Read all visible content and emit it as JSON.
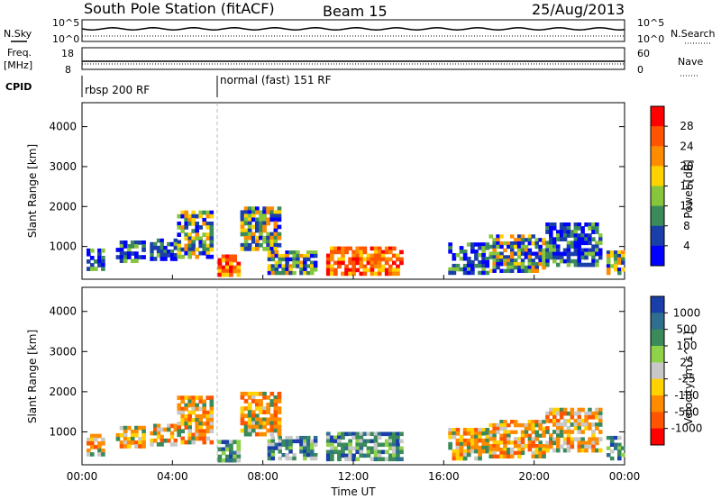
{
  "header": {
    "station": "South Pole Station (fitACF)",
    "beam": "Beam 15",
    "date": "25/Aug/2013"
  },
  "top_panels": {
    "nsky_label": "N.Sky",
    "nsky_ticks": [
      "10^5",
      "10^0"
    ],
    "nsearch_label": "N.Search",
    "nsearch_ticks": [
      "10^5",
      "10^0"
    ],
    "freq_label_1": "Freq.",
    "freq_label_2": "[MHz]",
    "freq_ticks": [
      "18",
      "8"
    ],
    "nave_label": "Nave",
    "nave_ticks": [
      "60",
      "0"
    ],
    "cpid_label": "CPID",
    "cpid_segments": [
      {
        "label": "rbsp 200 RF",
        "start_hour": 0
      },
      {
        "label": "normal (fast) 151 RF",
        "start_hour": 6
      }
    ]
  },
  "x_axis": {
    "label": "Time UT",
    "ticks": [
      "00:00",
      "04:00",
      "08:00",
      "12:00",
      "16:00",
      "20:00",
      "00:00"
    ]
  },
  "chart_data": [
    {
      "type": "heatmap",
      "ylabel": "Slant Range [km]",
      "xlim": [
        0,
        24
      ],
      "ylim": [
        180,
        4600
      ],
      "yticks": [
        "4000",
        "3000",
        "2000",
        "1000"
      ],
      "colorbar": {
        "label": "Power [dB]",
        "ticks": [
          "28",
          "24",
          "20",
          "16",
          "12",
          "8",
          "4"
        ],
        "colors": [
          "#ff0000",
          "#ff5500",
          "#ff8c00",
          "#ffd200",
          "#86c53c",
          "#3a8a5a",
          "#1a3fa8",
          "#0000ff"
        ]
      },
      "regions": [
        {
          "t0": 0.2,
          "t1": 1.0,
          "r0": 400,
          "r1": 950,
          "level": "low"
        },
        {
          "t0": 1.5,
          "t1": 2.8,
          "r0": 600,
          "r1": 1150,
          "level": "low"
        },
        {
          "t0": 3.0,
          "t1": 4.2,
          "r0": 650,
          "r1": 1200,
          "level": "low"
        },
        {
          "t0": 4.2,
          "t1": 5.8,
          "r0": 700,
          "r1": 1900,
          "level": "mid"
        },
        {
          "t0": 6.0,
          "t1": 7.0,
          "r0": 250,
          "r1": 800,
          "level": "high"
        },
        {
          "t0": 7.0,
          "t1": 8.8,
          "r0": 900,
          "r1": 2000,
          "level": "mid"
        },
        {
          "t0": 8.2,
          "t1": 10.4,
          "r0": 300,
          "r1": 900,
          "level": "mid"
        },
        {
          "t0": 10.8,
          "t1": 14.2,
          "r0": 280,
          "r1": 1000,
          "level": "high"
        },
        {
          "t0": 16.2,
          "t1": 18.0,
          "r0": 300,
          "r1": 1100,
          "level": "low"
        },
        {
          "t0": 18.0,
          "t1": 20.5,
          "r0": 350,
          "r1": 1300,
          "level": "mid"
        },
        {
          "t0": 20.5,
          "t1": 23.0,
          "r0": 500,
          "r1": 1600,
          "level": "low"
        },
        {
          "t0": 23.2,
          "t1": 24.0,
          "r0": 300,
          "r1": 900,
          "level": "mid"
        }
      ]
    },
    {
      "type": "heatmap",
      "ylabel": "Slant Range [km]",
      "xlim": [
        0,
        24
      ],
      "ylim": [
        180,
        4600
      ],
      "yticks": [
        "4000",
        "3000",
        "2000",
        "1000"
      ],
      "colorbar": {
        "label": "Velocity [m s^-1]",
        "ticks": [
          "1000",
          "500",
          "100",
          "25",
          "-25",
          "-100",
          "-500",
          "-1000"
        ],
        "colors": [
          "#1a3fa8",
          "#2e6e8e",
          "#3a8a5a",
          "#8fd24a",
          "#c8c8c8",
          "#ffd200",
          "#ff8c00",
          "#ff5500",
          "#ff0000"
        ]
      },
      "regions": [
        {
          "t0": 0.2,
          "t1": 1.0,
          "r0": 400,
          "r1": 950,
          "level": "neg"
        },
        {
          "t0": 1.5,
          "t1": 2.8,
          "r0": 600,
          "r1": 1150,
          "level": "neg"
        },
        {
          "t0": 3.0,
          "t1": 4.2,
          "r0": 650,
          "r1": 1200,
          "level": "neg"
        },
        {
          "t0": 4.2,
          "t1": 5.8,
          "r0": 700,
          "r1": 1900,
          "level": "neg"
        },
        {
          "t0": 6.0,
          "t1": 7.0,
          "r0": 250,
          "r1": 800,
          "level": "pos"
        },
        {
          "t0": 7.0,
          "t1": 8.8,
          "r0": 900,
          "r1": 2000,
          "level": "neg"
        },
        {
          "t0": 8.2,
          "t1": 10.4,
          "r0": 300,
          "r1": 900,
          "level": "pos"
        },
        {
          "t0": 10.8,
          "t1": 14.2,
          "r0": 280,
          "r1": 1000,
          "level": "pos"
        },
        {
          "t0": 16.2,
          "t1": 18.0,
          "r0": 300,
          "r1": 1100,
          "level": "neg"
        },
        {
          "t0": 18.0,
          "t1": 20.5,
          "r0": 350,
          "r1": 1300,
          "level": "neg"
        },
        {
          "t0": 20.5,
          "t1": 23.0,
          "r0": 500,
          "r1": 1600,
          "level": "neg"
        },
        {
          "t0": 23.2,
          "t1": 24.0,
          "r0": 300,
          "r1": 900,
          "level": "pos"
        }
      ]
    }
  ]
}
